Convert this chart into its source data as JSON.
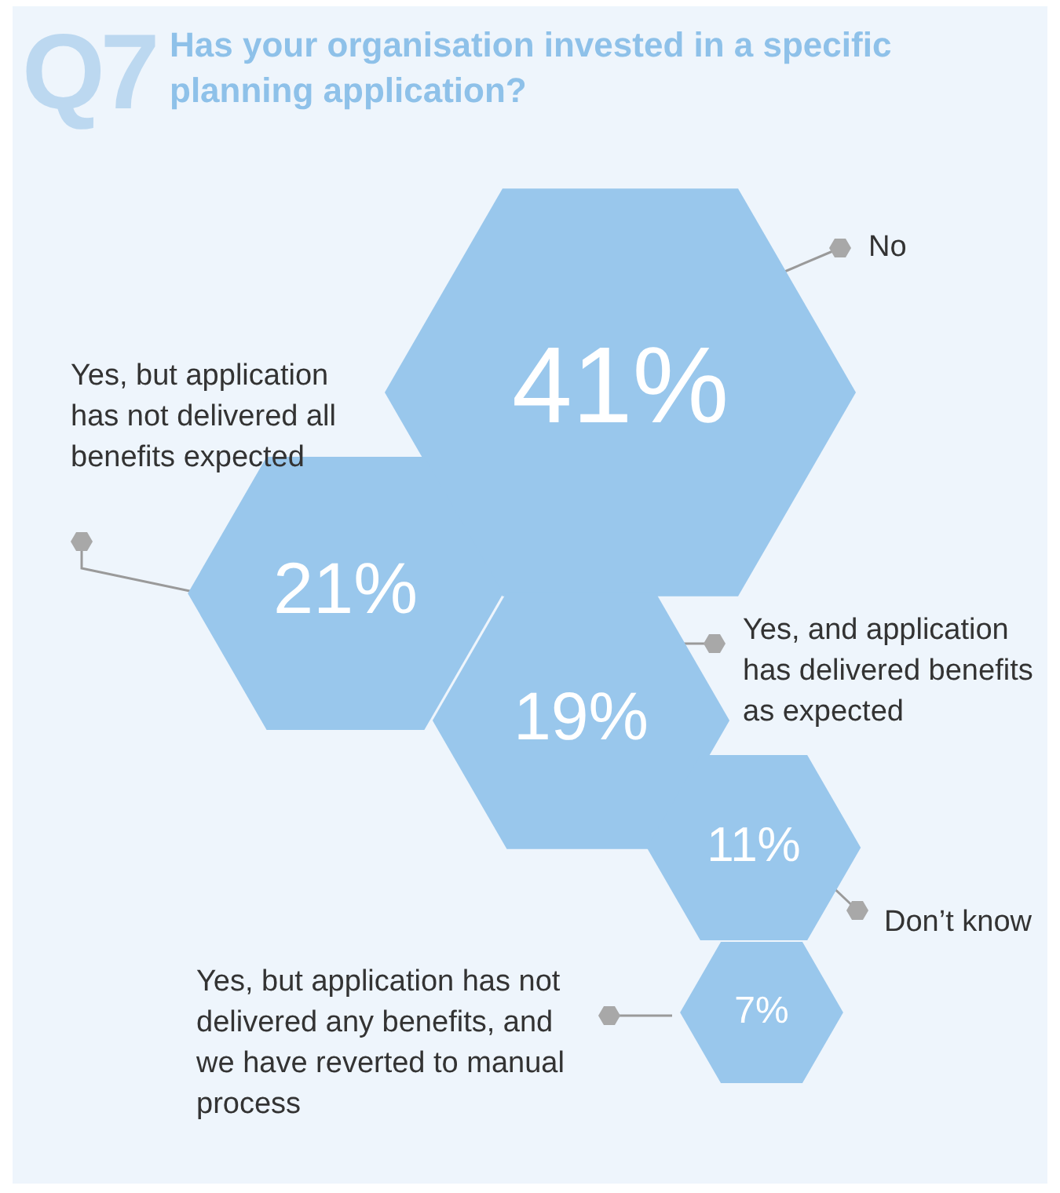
{
  "chart_data": {
    "type": "other",
    "title": "Has your organisation invested in a specific planning application?",
    "annotations": [
      "Q7"
    ],
    "categories": [
      "No",
      "Yes, but application has not delivered all benefits expected",
      "Yes, and application has delivered benefits as expected",
      "Don’t know",
      "Yes, but application has not delivered any benefits, and we have reverted to manual process"
    ],
    "values": [
      41,
      21,
      19,
      11,
      7
    ],
    "value_labels": [
      "41%",
      "21%",
      "19%",
      "11%",
      "7%"
    ],
    "color": "#99c7ec"
  }
}
